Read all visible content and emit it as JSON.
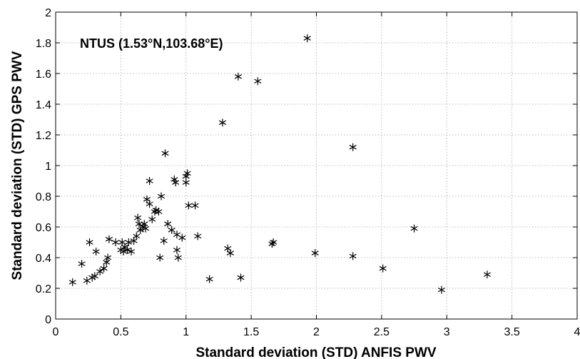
{
  "chart_data": {
    "type": "scatter",
    "title": "",
    "annotation": "NTUS (1.53°N,103.68°E)",
    "xlabel": "Standard deviation  (STD) ANFIS PWV",
    "ylabel": "Standard deviation  (STD) GPS PWV",
    "xlim": [
      0,
      4
    ],
    "ylim": [
      0,
      2
    ],
    "xticks": [
      "0",
      "0.5",
      "1",
      "1.5",
      "2",
      "2.5",
      "3",
      "3.5",
      "4"
    ],
    "yticks": [
      "0",
      "0.2",
      "0.4",
      "0.6",
      "0.8",
      "1",
      "1.2",
      "1.4",
      "1.6",
      "1.8",
      "2"
    ],
    "grid": true,
    "marker": "asterisk",
    "color": "#000000",
    "points": [
      [
        0.13,
        0.24
      ],
      [
        0.2,
        0.36
      ],
      [
        0.24,
        0.25
      ],
      [
        0.26,
        0.5
      ],
      [
        0.28,
        0.27
      ],
      [
        0.3,
        0.28
      ],
      [
        0.31,
        0.44
      ],
      [
        0.34,
        0.31
      ],
      [
        0.37,
        0.33
      ],
      [
        0.39,
        0.37
      ],
      [
        0.4,
        0.4
      ],
      [
        0.41,
        0.52
      ],
      [
        0.46,
        0.5
      ],
      [
        0.5,
        0.45
      ],
      [
        0.51,
        0.5
      ],
      [
        0.52,
        0.44
      ],
      [
        0.53,
        0.47
      ],
      [
        0.55,
        0.45
      ],
      [
        0.56,
        0.5
      ],
      [
        0.58,
        0.44
      ],
      [
        0.6,
        0.51
      ],
      [
        0.62,
        0.54
      ],
      [
        0.63,
        0.66
      ],
      [
        0.64,
        0.62
      ],
      [
        0.65,
        0.58
      ],
      [
        0.67,
        0.6
      ],
      [
        0.68,
        0.62
      ],
      [
        0.69,
        0.59
      ],
      [
        0.7,
        0.78
      ],
      [
        0.72,
        0.75
      ],
      [
        0.72,
        0.9
      ],
      [
        0.74,
        0.65
      ],
      [
        0.76,
        0.7
      ],
      [
        0.77,
        0.71
      ],
      [
        0.79,
        0.7
      ],
      [
        0.8,
        0.4
      ],
      [
        0.81,
        0.8
      ],
      [
        0.83,
        0.51
      ],
      [
        0.84,
        1.08
      ],
      [
        0.86,
        0.62
      ],
      [
        0.89,
        0.58
      ],
      [
        0.91,
        0.91
      ],
      [
        0.92,
        0.89
      ],
      [
        0.93,
        0.55
      ],
      [
        0.93,
        0.45
      ],
      [
        0.94,
        0.4
      ],
      [
        0.97,
        0.53
      ],
      [
        1.0,
        0.93
      ],
      [
        1.01,
        0.95
      ],
      [
        1.0,
        0.89
      ],
      [
        1.02,
        0.74
      ],
      [
        1.07,
        0.74
      ],
      [
        1.09,
        0.54
      ],
      [
        1.18,
        0.26
      ],
      [
        1.28,
        1.28
      ],
      [
        1.32,
        0.46
      ],
      [
        1.34,
        0.43
      ],
      [
        1.4,
        1.58
      ],
      [
        1.42,
        0.27
      ],
      [
        1.55,
        1.55
      ],
      [
        1.66,
        0.49
      ],
      [
        1.67,
        0.5
      ],
      [
        1.99,
        0.43
      ],
      [
        1.93,
        1.83
      ],
      [
        2.28,
        1.12
      ],
      [
        2.28,
        0.41
      ],
      [
        2.51,
        0.33
      ],
      [
        2.75,
        0.59
      ],
      [
        2.96,
        0.19
      ],
      [
        3.31,
        0.29
      ]
    ]
  }
}
